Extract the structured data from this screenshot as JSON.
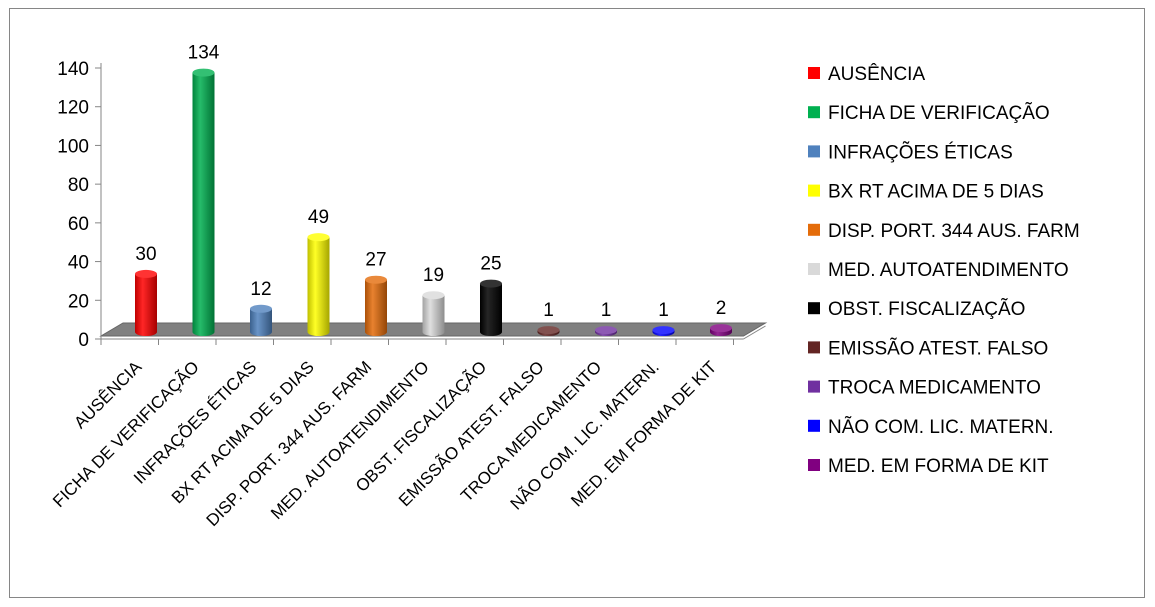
{
  "chart_data": {
    "type": "bar",
    "style": "3d-cylinder",
    "categories": [
      "AUSÊNCIA",
      "FICHA DE VERIFICAÇÃO",
      "INFRAÇÕES ÉTICAS",
      "BX RT ACIMA DE 5 DIAS",
      "DISP. PORT. 344  AUS. FARM",
      "MED. AUTOATENDIMENTO",
      "OBST. FISCALIZAÇÃO",
      "EMISSÃO ATEST. FALSO",
      "TROCA MEDICAMENTO",
      "NÃO COM. LIC. MATERN.",
      "MED. EM FORMA DE KIT"
    ],
    "values": [
      30,
      134,
      12,
      49,
      27,
      19,
      25,
      1,
      1,
      1,
      2
    ],
    "data_labels": [
      "30",
      "134",
      "12",
      "49",
      "27",
      "19",
      "25",
      "1",
      "1",
      "1",
      "2"
    ],
    "colors": [
      "#ff0000",
      "#00b050",
      "#4f81bd",
      "#ffff00",
      "#e46c0a",
      "#d9d9d9",
      "#000000",
      "#632523",
      "#7030a0",
      "#0000ff",
      "#800080"
    ],
    "ylim": [
      0,
      140
    ],
    "yticks": [
      "0",
      "20",
      "40",
      "60",
      "80",
      "100",
      "120",
      "140"
    ],
    "grid": false,
    "legend_position": "right",
    "title": "",
    "xlabel": "",
    "ylabel": "",
    "floor_color": "#808080"
  }
}
